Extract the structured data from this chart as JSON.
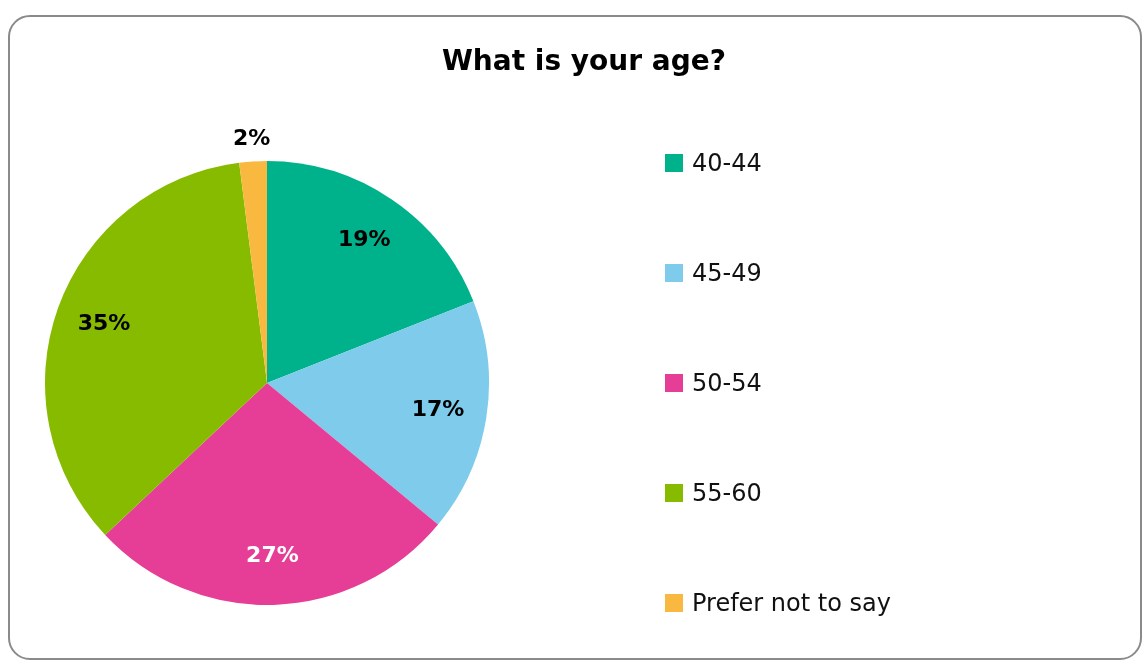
{
  "chart_data": {
    "type": "pie",
    "title": "What is your age?",
    "categories": [
      "40-44",
      "45-49",
      "50-54",
      "55-60",
      "Prefer not to say"
    ],
    "values": [
      19,
      17,
      27,
      35,
      2
    ],
    "colors": [
      "#00b28c",
      "#7ecbeb",
      "#e63e96",
      "#86bb00",
      "#f9b941"
    ],
    "value_labels": [
      "19%",
      "17%",
      "27%",
      "35%",
      "2%"
    ],
    "legend": "right"
  }
}
